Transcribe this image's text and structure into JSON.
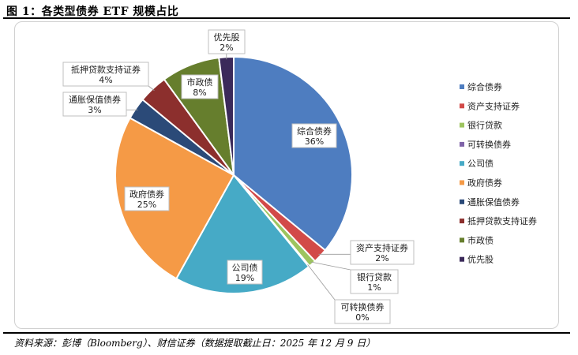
{
  "figure_title": "图 1：各类型债券 ETF 规模占比",
  "source_note": "资料来源：彭博（Bloomberg）、财信证券（数据提取截止日：2025 年 12 月 9 日）",
  "chart_data": {
    "type": "pie",
    "title": "",
    "legend_position": "right",
    "unit": "%",
    "categories": [
      "综合债券",
      "资产支持证券",
      "银行贷款",
      "可转换债券",
      "公司债",
      "政府债券",
      "通胀保值债券",
      "抵押贷款支持证券",
      "市政债",
      "优先股"
    ],
    "values": [
      36,
      2,
      1,
      0,
      19,
      25,
      3,
      4,
      8,
      2
    ],
    "value_labels": [
      "36%",
      "2%",
      "1%",
      "0%",
      "19%",
      "25%",
      "3%",
      "4%",
      "8%",
      "2%"
    ],
    "colors": [
      "#4e7dc0",
      "#d24a48",
      "#9dc45f",
      "#7f63a8",
      "#46aac6",
      "#f59a46",
      "#2b4a78",
      "#8c2f2d",
      "#667e2d",
      "#3b2a5a"
    ]
  }
}
